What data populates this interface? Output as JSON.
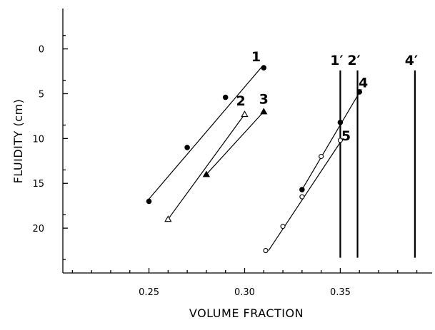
{
  "chart_data": {
    "type": "scatter",
    "title": "",
    "xlabel": "VOLUME FRACTION",
    "ylabel": "FLUIDITY (cm)",
    "xlim": [
      0.205,
      0.398
    ],
    "ylim": [
      25.0,
      -4.5
    ],
    "y_inverted": true,
    "xticks": [
      0.25,
      0.3,
      0.35
    ],
    "xtick_labels": [
      "0.25",
      "0.30",
      "0.35"
    ],
    "yticks": [
      0,
      5,
      10,
      15,
      20
    ],
    "ytick_labels": [
      "0",
      "5",
      "10",
      "15",
      "20"
    ],
    "grid": false,
    "series": [
      {
        "name": "1",
        "marker": "filled-circle",
        "points": [
          [
            0.25,
            17.0
          ],
          [
            0.27,
            11.0
          ],
          [
            0.29,
            5.4
          ],
          [
            0.31,
            2.1
          ]
        ],
        "fit": [
          [
            0.249,
            17.0
          ],
          [
            0.309,
            2.0
          ]
        ],
        "label_at": [
          0.306,
          1.4
        ]
      },
      {
        "name": "2",
        "marker": "open-triangle",
        "points": [
          [
            0.26,
            19.0
          ],
          [
            0.3,
            7.3
          ]
        ],
        "fit": [
          [
            0.26,
            19.0
          ],
          [
            0.3,
            7.3
          ]
        ],
        "label_at": [
          0.298,
          6.3
        ]
      },
      {
        "name": "3",
        "marker": "filled-triangle",
        "points": [
          [
            0.28,
            14.0
          ],
          [
            0.31,
            7.0
          ]
        ],
        "fit": [
          [
            0.28,
            14.0
          ],
          [
            0.31,
            7.0
          ]
        ],
        "label_at": [
          0.31,
          6.1
        ]
      },
      {
        "name": "4",
        "marker": "filled-circle",
        "points": [
          [
            0.33,
            15.7
          ],
          [
            0.35,
            8.2
          ],
          [
            0.36,
            4.8
          ]
        ],
        "fit": [
          [
            0.33,
            15.7
          ],
          [
            0.361,
            4.5
          ]
        ],
        "label_at": [
          0.362,
          4.3
        ]
      },
      {
        "name": "5",
        "marker": "open-circle",
        "points": [
          [
            0.311,
            22.5
          ],
          [
            0.32,
            19.8
          ],
          [
            0.33,
            16.5
          ],
          [
            0.34,
            12.0
          ],
          [
            0.35,
            10.2
          ]
        ],
        "fit": [
          [
            0.3125,
            22.5
          ],
          [
            0.351,
            10.1
          ]
        ],
        "label_at": [
          0.353,
          10.2
        ]
      }
    ],
    "vertical_lines": [
      {
        "name": "1′",
        "x": 0.35,
        "y_top": 2.4,
        "y_bottom": 23.3
      },
      {
        "name": "2′",
        "x": 0.359,
        "y_top": 2.4,
        "y_bottom": 23.3
      },
      {
        "name": "4′",
        "x": 0.389,
        "y_top": 2.4,
        "y_bottom": 23.3
      }
    ]
  }
}
